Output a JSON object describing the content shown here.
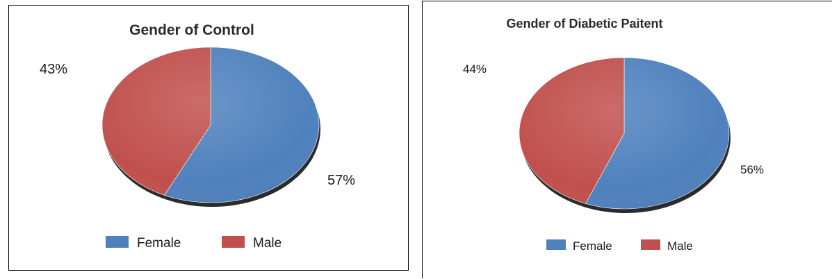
{
  "chart_data": [
    {
      "type": "pie",
      "title": "Gender of Control",
      "categories": [
        "Female",
        "Male"
      ],
      "values": [
        57,
        43
      ],
      "data_labels": [
        "57%",
        "43%"
      ],
      "colors": [
        "#4f81bd",
        "#c0504d"
      ],
      "legend": {
        "placement": "bottom",
        "entries": [
          "Female",
          "Male"
        ]
      }
    },
    {
      "type": "pie",
      "title": "Gender of Diabetic Paitent",
      "categories": [
        "Female",
        "Male"
      ],
      "values": [
        56,
        44
      ],
      "data_labels": [
        "56%",
        "44%"
      ],
      "colors": [
        "#4f81bd",
        "#c0504d"
      ],
      "legend": {
        "placement": "bottom",
        "entries": [
          "Female",
          "Male"
        ]
      }
    }
  ]
}
